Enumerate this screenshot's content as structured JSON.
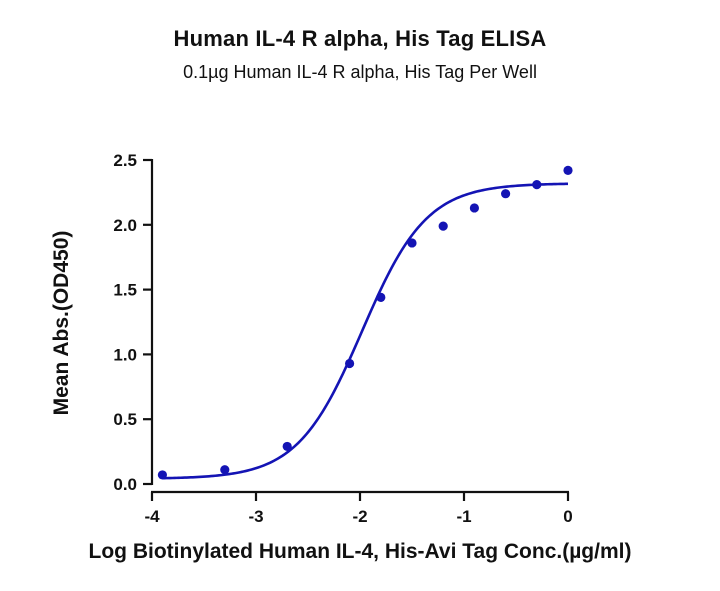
{
  "chart_data": {
    "type": "scatter",
    "title": "Human IL-4 R alpha, His Tag ELISA",
    "subtitle": "0.1µg Human IL-4 R alpha, His Tag Per Well",
    "xlabel": "Log Biotinylated Human IL-4, His-Avi Tag Conc.(µg/ml)",
    "ylabel": "Mean Abs.(OD450)",
    "xlim": [
      -4,
      0
    ],
    "ylim": [
      0,
      2.5
    ],
    "x_ticks": [
      -4,
      -3,
      -2,
      -1,
      0
    ],
    "x_tick_labels": [
      "-4",
      "-3",
      "-2",
      "-1",
      "0"
    ],
    "y_ticks": [
      0,
      0.5,
      1.0,
      1.5,
      2.0,
      2.5
    ],
    "y_tick_labels": [
      "0.0",
      "0.5",
      "1.0",
      "1.5",
      "2.0",
      "2.5"
    ],
    "grid": false,
    "series": [
      {
        "x": [
          -3.9,
          -3.3,
          -2.7,
          -2.1,
          -1.8,
          -1.5,
          -1.2,
          -0.9,
          -0.6,
          -0.3,
          0.0
        ],
        "y": [
          0.07,
          0.11,
          0.29,
          0.93,
          1.44,
          1.86,
          1.99,
          2.13,
          2.24,
          2.31,
          2.42
        ],
        "fit": {
          "model": "4PL",
          "bottom": 0.04,
          "top": 2.32,
          "log_ec50": -1.98,
          "hill_slope": 1.4
        }
      }
    ],
    "colors": {
      "series": "#1414b4",
      "axis": "#111111"
    }
  }
}
